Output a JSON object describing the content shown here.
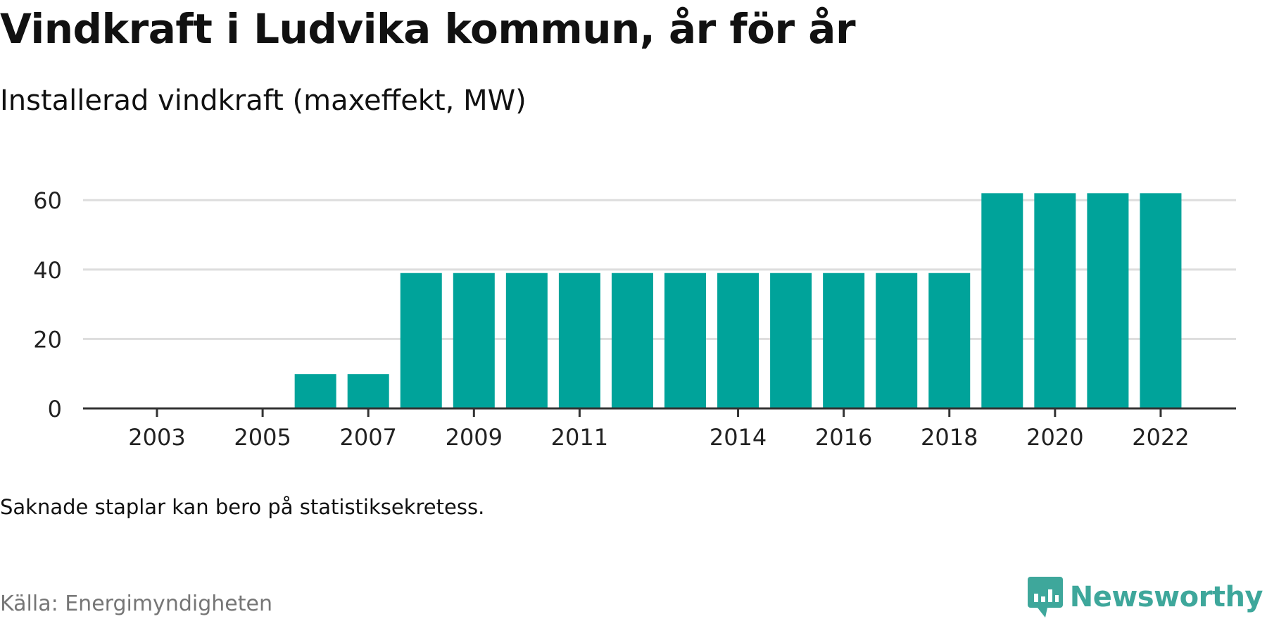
{
  "header": {
    "title": "Vindkraft i Ludvika kommun, år för år",
    "subtitle": "Installerad vindkraft (maxeffekt, MW)"
  },
  "footer": {
    "note": "Saknade staplar kan bero på statistiksekretess.",
    "source": "Källa: Energimyndigheten",
    "brand": "Newsworthy"
  },
  "colors": {
    "bar": "#00a39a",
    "grid": "#dddddd",
    "axis": "#333333",
    "brand": "#3ea79b"
  },
  "chart_data": {
    "type": "bar",
    "categories": [
      "2003",
      "2004",
      "2005",
      "2006",
      "2007",
      "2008",
      "2009",
      "2010",
      "2011",
      "2012",
      "2013",
      "2014",
      "2015",
      "2016",
      "2017",
      "2018",
      "2019",
      "2020",
      "2021",
      "2022"
    ],
    "values": [
      0,
      0,
      0,
      9.9,
      9.9,
      39,
      39,
      39,
      39,
      39,
      39,
      39,
      39,
      39,
      39,
      39,
      62,
      62,
      62,
      62
    ],
    "x_tick_labels": [
      "2003",
      "2005",
      "2007",
      "2009",
      "2011",
      "2014",
      "2016",
      "2018",
      "2020",
      "2022"
    ],
    "y_ticks": [
      0,
      20,
      40,
      60
    ],
    "ylim": [
      0,
      65
    ],
    "xlabel": "",
    "ylabel": "",
    "grid": true,
    "legend": "none"
  }
}
